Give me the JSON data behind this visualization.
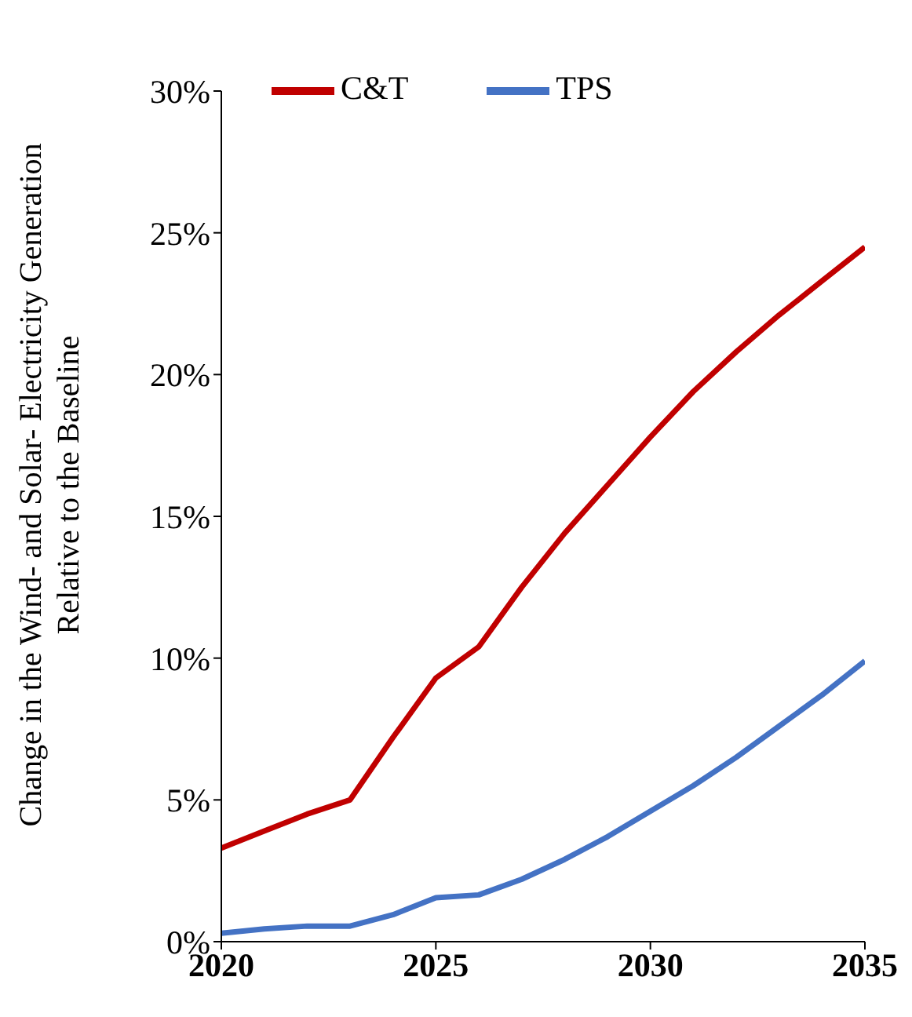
{
  "chart_data": {
    "type": "line",
    "ylabel": "Change in the Wind- and Solar- Electricity Generation\nRelative to the Baseline",
    "x": [
      2020,
      2021,
      2022,
      2023,
      2024,
      2025,
      2026,
      2027,
      2028,
      2029,
      2030,
      2031,
      2032,
      2033,
      2034,
      2035
    ],
    "series": [
      {
        "name": "TPS",
        "color": "#4472c4",
        "values": [
          0.3,
          0.45,
          0.55,
          0.55,
          0.95,
          1.55,
          1.65,
          2.2,
          2.9,
          3.7,
          4.6,
          5.5,
          6.5,
          7.6,
          8.7,
          9.9
        ]
      },
      {
        "name": "C&T",
        "color": "#c00000",
        "values": [
          3.3,
          3.9,
          4.5,
          5.0,
          7.2,
          9.3,
          10.4,
          12.5,
          14.4,
          16.1,
          17.8,
          19.4,
          20.8,
          22.1,
          23.3,
          24.5
        ]
      }
    ],
    "xlim": [
      2020,
      2035
    ],
    "xticks": [
      2020,
      2025,
      2030,
      2035
    ],
    "ylim": [
      0,
      30
    ],
    "yticks": [
      {
        "value": 0,
        "label": "0%"
      },
      {
        "value": 5,
        "label": "5%"
      },
      {
        "value": 10,
        "label": "10%"
      },
      {
        "value": 15,
        "label": "15%"
      },
      {
        "value": 20,
        "label": "20%"
      },
      {
        "value": 25,
        "label": "25%"
      },
      {
        "value": 30,
        "label": "30%"
      }
    ],
    "grid": false,
    "legend": "top left",
    "marker": "none",
    "line_style": "solid"
  }
}
